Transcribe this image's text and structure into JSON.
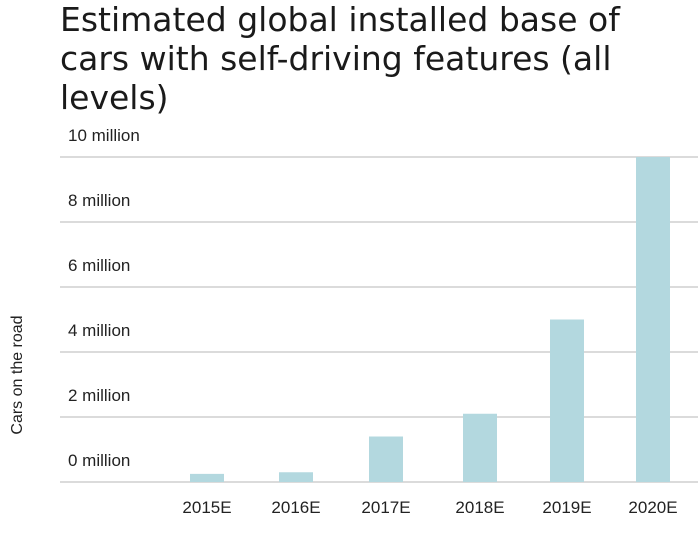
{
  "chart_data": {
    "type": "bar",
    "title": "Estimated global installed base of cars with self-driving features (all levels)",
    "xlabel": "",
    "ylabel": "Cars on the road",
    "categories": [
      "2015E",
      "2016E",
      "2017E",
      "2018E",
      "2019E",
      "2020E"
    ],
    "values": [
      250000,
      300000,
      1400000,
      2100000,
      5000000,
      10000000
    ],
    "ylim": [
      0,
      10000000
    ],
    "yticks": [
      0,
      2000000,
      4000000,
      6000000,
      8000000,
      10000000
    ],
    "ytick_labels": [
      "0 million",
      "2 million",
      "4 million",
      "6 million",
      "8 million",
      "10 million"
    ],
    "grid": true,
    "legend": "none",
    "colors": {
      "bar": "#b3d8df",
      "grid": "#cfcfcf",
      "text": "#222222"
    }
  }
}
